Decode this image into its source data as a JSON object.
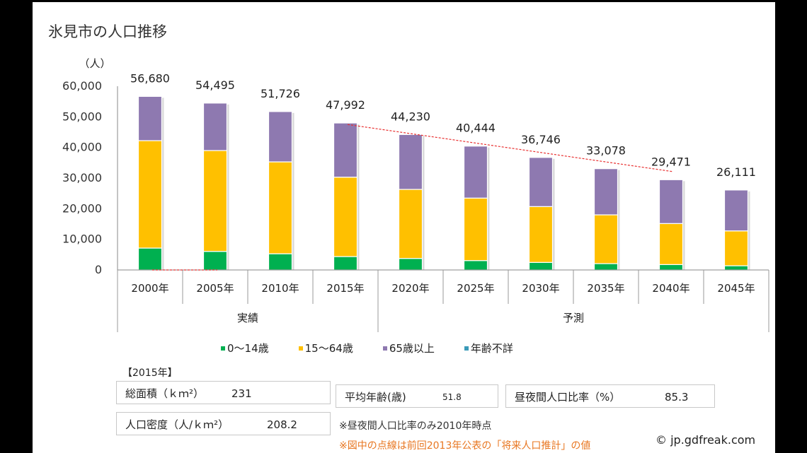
{
  "title": "氷見市の人口推移",
  "chart_data": {
    "type": "bar",
    "stacked": true,
    "title": "氷見市の人口推移",
    "ylabel": "（人）",
    "xlabel": "",
    "ylim": [
      0,
      60000
    ],
    "yticks": [
      0,
      10000,
      20000,
      30000,
      40000,
      50000,
      60000
    ],
    "ytick_labels": [
      "0",
      "10,000",
      "20,000",
      "30,000",
      "40,000",
      "50,000",
      "60,000"
    ],
    "grid": false,
    "categories": [
      "2000年",
      "2005年",
      "2010年",
      "2015年",
      "2020年",
      "2025年",
      "2030年",
      "2035年",
      "2040年",
      "2045年"
    ],
    "groups": [
      {
        "label": "実績",
        "from": 0,
        "to": 3
      },
      {
        "label": "予測",
        "from": 4,
        "to": 9
      }
    ],
    "series": [
      {
        "name": "0〜14歳",
        "color": "#00b050",
        "values": [
          7150,
          6070,
          5300,
          4380,
          3770,
          3070,
          2470,
          2080,
          1770,
          1380
        ]
      },
      {
        "name": "15〜64歳",
        "color": "#ffc000",
        "values": [
          35080,
          32930,
          30000,
          25920,
          22540,
          20400,
          18230,
          15920,
          13390,
          11380
        ]
      },
      {
        "name": "65歳以上",
        "color": "#8e79b0",
        "values": [
          14450,
          15495,
          16426,
          17692,
          17920,
          16974,
          16046,
          15078,
          14311,
          13351
        ]
      },
      {
        "name": "年齢不詳",
        "color": "#3a9ab8",
        "values": [
          0,
          0,
          0,
          0,
          0,
          0,
          0,
          0,
          0,
          0
        ]
      }
    ],
    "totals": [
      56680,
      54495,
      51726,
      47992,
      44230,
      40444,
      36746,
      33078,
      29471,
      26111
    ],
    "total_labels": [
      "56,680",
      "54,495",
      "51,726",
      "47,992",
      "44,230",
      "40,444",
      "36,746",
      "33,078",
      "29,471",
      "26,111"
    ],
    "previous_projection": {
      "name": "前回2013年公表の「将来人口推計」",
      "style": "dashed",
      "color": "#e83030",
      "segments": [
        {
          "x": [
            0,
            1
          ],
          "values": [
            0,
            0
          ]
        },
        {
          "x": [
            3,
            8
          ],
          "values": [
            47500,
            32100
          ]
        }
      ]
    },
    "legend_position": "bottom"
  },
  "info": {
    "year_label": "【2015年】",
    "area_label": "総面積（ｋｍ²）",
    "area_value": "231",
    "density_label": "人口密度（人/ｋｍ²）",
    "density_value": "208.2",
    "avg_age_label": "平均年齢(歳)",
    "avg_age_value": "51.8",
    "daynight_label": "昼夜間人口比率（%）",
    "daynight_value": "85.3",
    "note_daynight": "※昼夜間人口比率のみ2010年時点",
    "note_dashed": "※図中の点線は前回2013年公表の「将来人口推計」の値",
    "credit": "© jp.gdfreak.com"
  }
}
